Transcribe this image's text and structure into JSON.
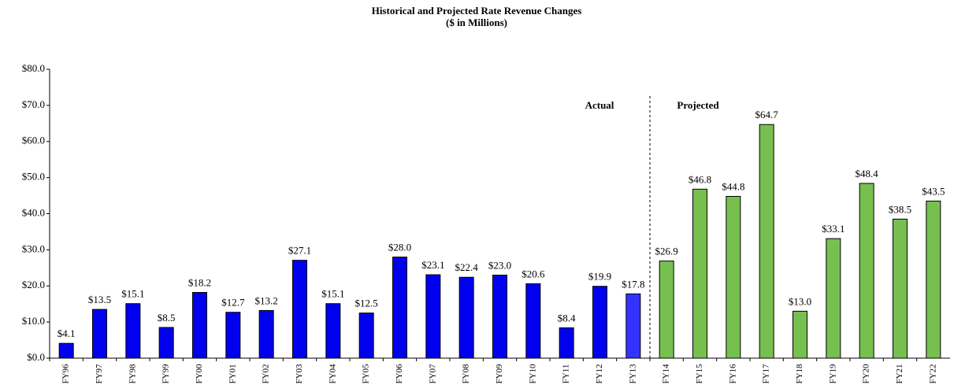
{
  "chart_data": {
    "type": "bar",
    "title": "Historical and Projected Rate Revenue Changes",
    "subtitle": "($ in Millions)",
    "annotations": [
      "Actual",
      "Projected"
    ],
    "categories": [
      "FY96",
      "FY97",
      "FY98",
      "FY99",
      "FY00",
      "FY01",
      "FY02",
      "FY03",
      "FY04",
      "FY05",
      "FY06",
      "FY07",
      "FY08",
      "FY09",
      "FY10",
      "FY11",
      "FY12",
      "FY13",
      "FY14",
      "FY15",
      "FY16",
      "FY17",
      "FY18",
      "FY19",
      "FY20",
      "FY21",
      "FY22"
    ],
    "values": [
      4.1,
      13.5,
      15.1,
      8.5,
      18.2,
      12.7,
      13.2,
      27.1,
      15.1,
      12.5,
      28.0,
      23.1,
      22.4,
      23.0,
      20.6,
      8.4,
      19.9,
      17.8,
      26.9,
      46.8,
      44.8,
      64.7,
      13.0,
      33.1,
      48.4,
      38.5,
      43.5
    ],
    "value_labels": [
      "$4.1",
      "$13.5",
      "$15.1",
      "$8.5",
      "$18.2",
      "$12.7",
      "$13.2",
      "$27.1",
      "$15.1",
      "$12.5",
      "$28.0",
      "$23.1",
      "$22.4",
      "$23.0",
      "$20.6",
      "$8.4",
      "$19.9",
      "$17.8",
      "$26.9",
      "$46.8",
      "$44.8",
      "$64.7",
      "$13.0",
      "$33.1",
      "$48.4",
      "$38.5",
      "$43.5"
    ],
    "colors": [
      "#0000ee",
      "#0000ee",
      "#0000ee",
      "#0000ee",
      "#0000ee",
      "#0000ee",
      "#0000ee",
      "#0000ee",
      "#0000ee",
      "#0000ee",
      "#0000ee",
      "#0000ee",
      "#0000ee",
      "#0000ee",
      "#0000ee",
      "#0000ee",
      "#0000ee",
      "#3333ff",
      "#77c050",
      "#77c050",
      "#77c050",
      "#77c050",
      "#77c050",
      "#77c050",
      "#77c050",
      "#77c050",
      "#77c050"
    ],
    "ylim": [
      0,
      80
    ],
    "yticks": [
      {
        "value": 0,
        "label": "$0.0"
      },
      {
        "value": 10,
        "label": "$10.0"
      },
      {
        "value": 20,
        "label": "$20.0"
      },
      {
        "value": 30,
        "label": "$30.0"
      },
      {
        "value": 40,
        "label": "$40.0"
      },
      {
        "value": 50,
        "label": "$50.0"
      },
      {
        "value": 60,
        "label": "$60.0"
      },
      {
        "value": 70,
        "label": "$70.0"
      },
      {
        "value": 80,
        "label": "$80.0"
      }
    ],
    "grid": false
  }
}
